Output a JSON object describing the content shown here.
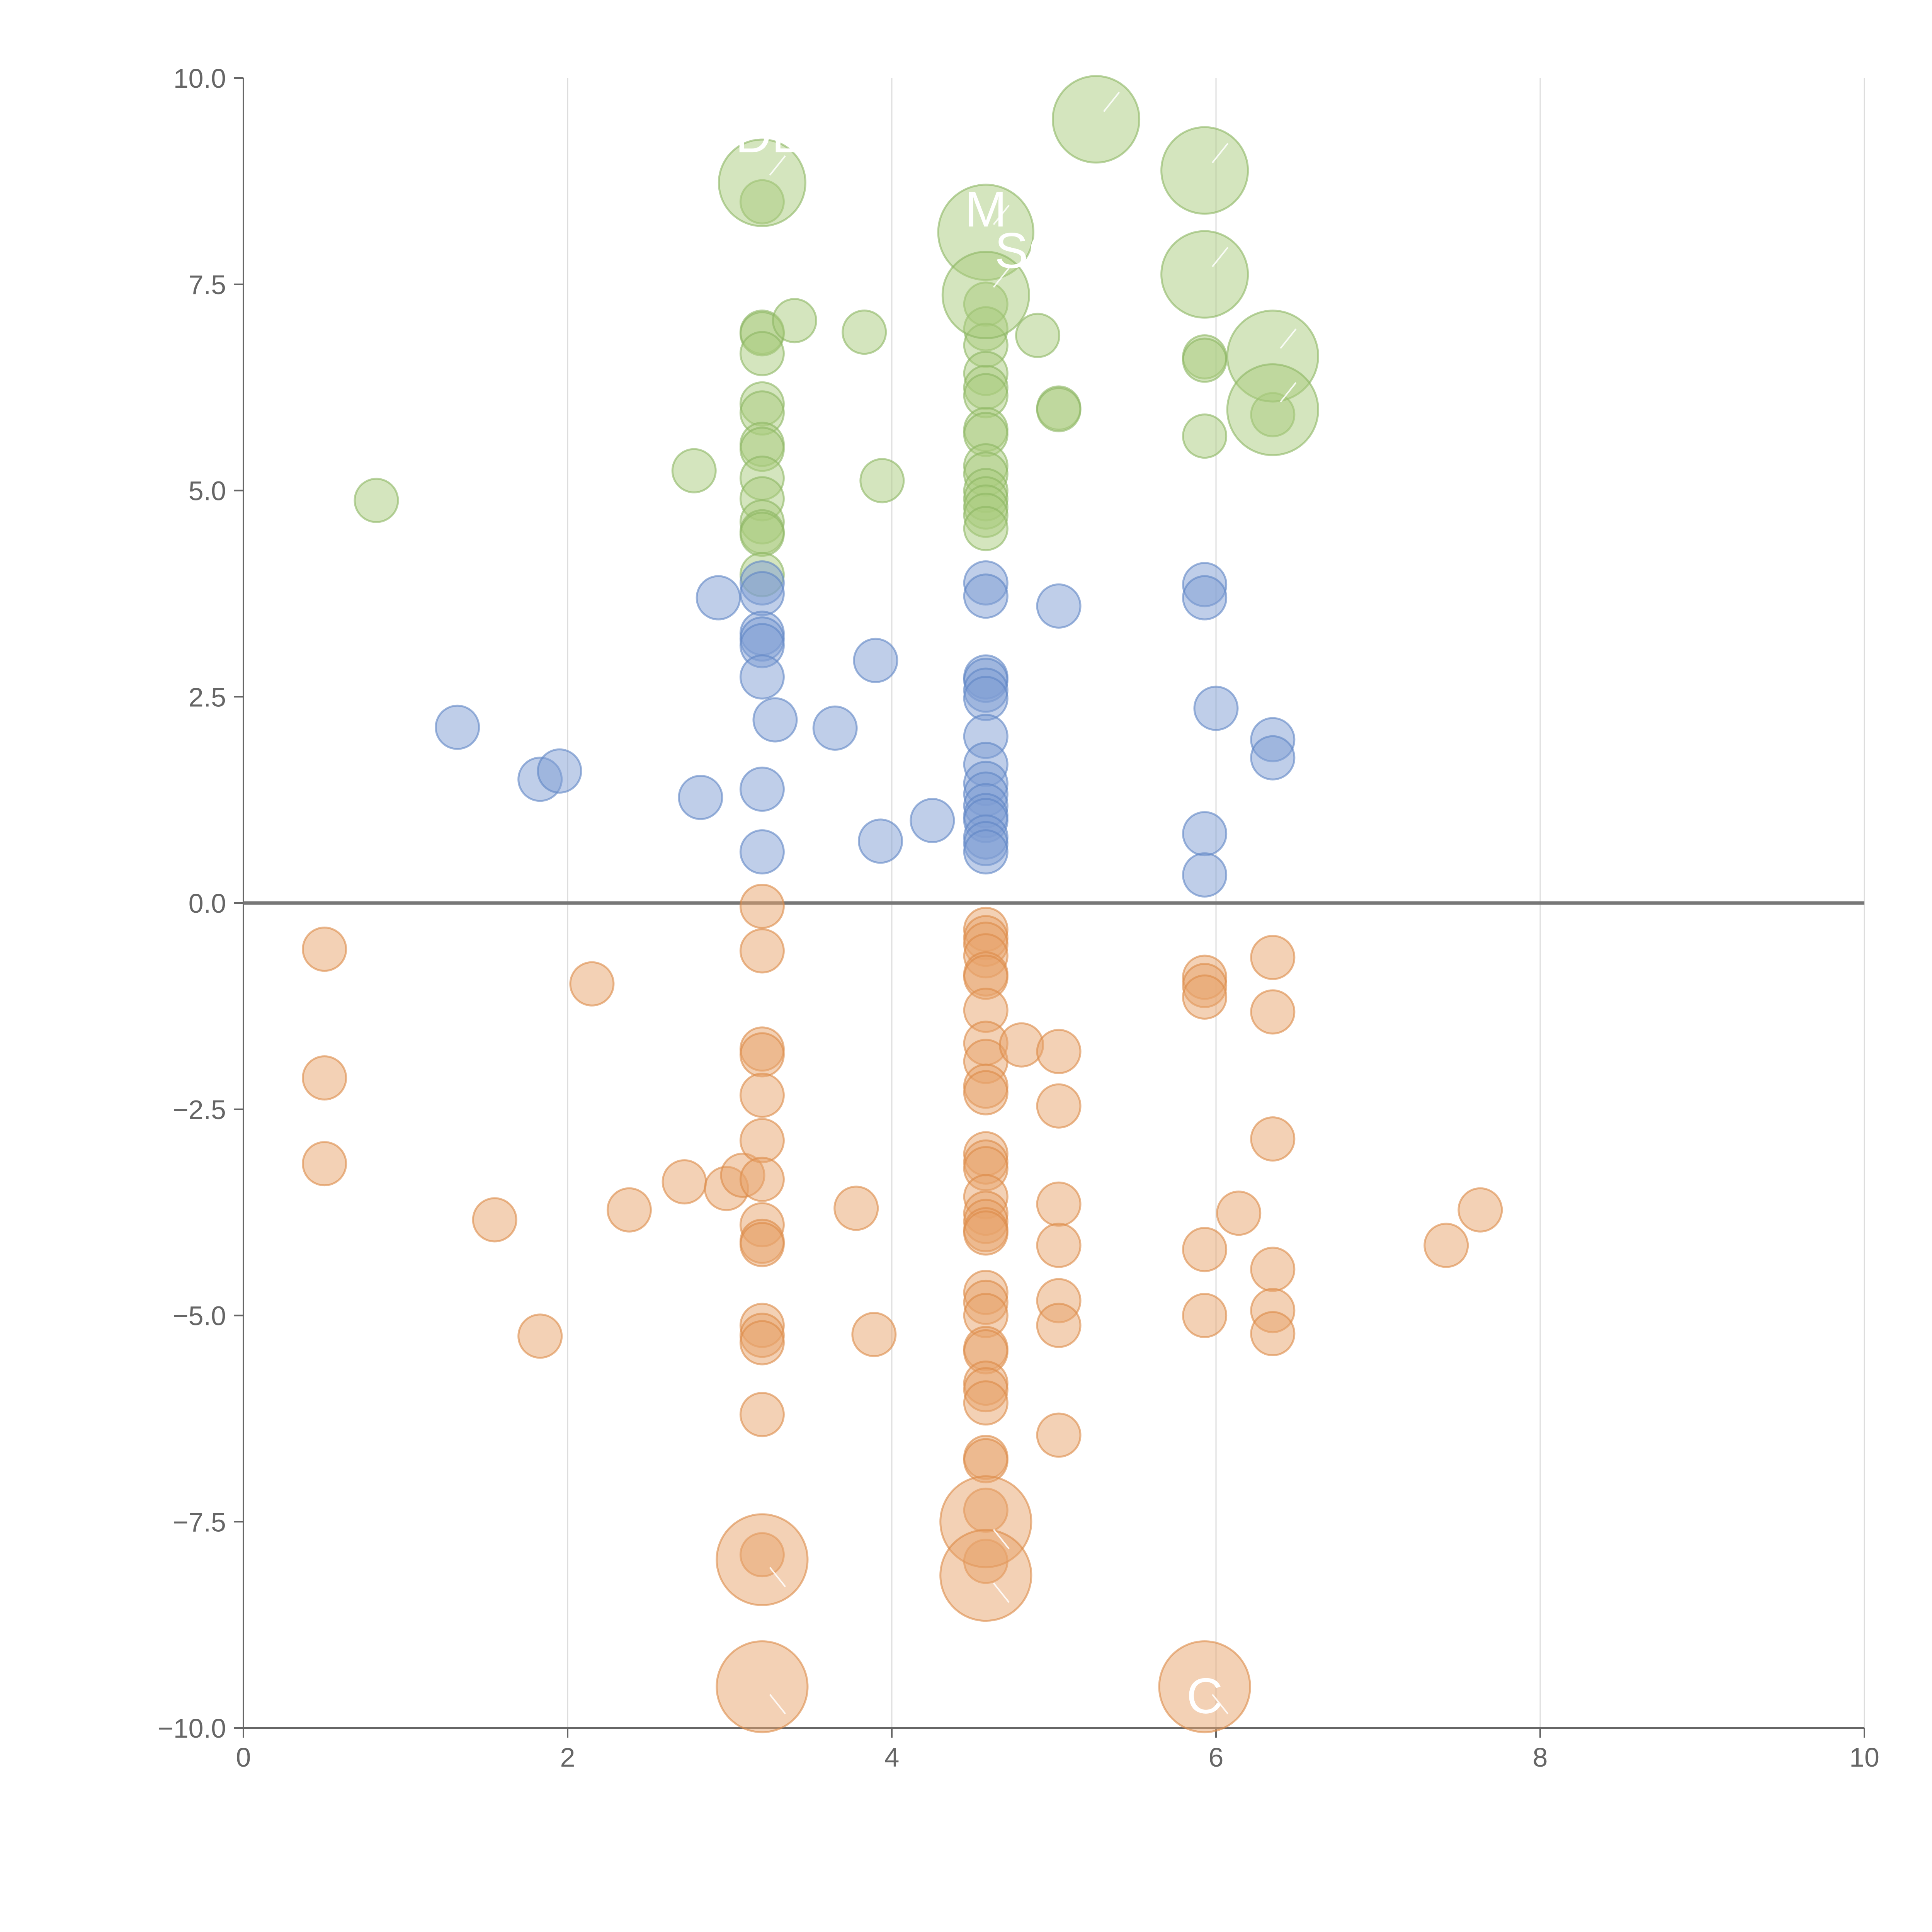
{
  "chart_data": {
    "type": "scatter",
    "title": "",
    "xlabel": "",
    "ylabel": "",
    "xlim": [
      0,
      10
    ],
    "ylim": [
      -10,
      10
    ],
    "grid": "vertical",
    "x_ticks": [
      0,
      2,
      4,
      6,
      8,
      10
    ],
    "y_ticks": [
      -10,
      -7.5,
      -5,
      -2.5,
      0,
      2.5,
      5,
      7.5,
      10
    ],
    "x_tick_labels": [
      "0",
      "2",
      "4",
      "6",
      "8",
      "10"
    ],
    "y_tick_labels": [
      "−10.0",
      "−7.5",
      "−5.0",
      "−2.5",
      "0.0",
      "2.5",
      "5.0",
      "7.5",
      "10.0"
    ],
    "colors": {
      "green_fill": "#a9cb7e",
      "green_stroke": "#8cb563",
      "blue_fill": "#7f9ed3",
      "blue_stroke": "#5f86c4",
      "orange_fill": "#e8a46c",
      "orange_stroke": "#dc8a48"
    },
    "series": [
      {
        "name": "green",
        "color": "green",
        "points": [
          [
            0.82,
            4.88,
            1
          ],
          [
            2.78,
            5.24,
            1
          ],
          [
            3.2,
            8.5,
            1
          ],
          [
            3.2,
            6.92,
            1
          ],
          [
            3.2,
            6.9,
            1
          ],
          [
            3.2,
            6.66,
            1
          ],
          [
            3.2,
            6.05,
            1
          ],
          [
            3.2,
            5.94,
            1
          ],
          [
            3.2,
            5.56,
            1
          ],
          [
            3.2,
            5.5,
            1
          ],
          [
            3.2,
            5.15,
            1
          ],
          [
            3.2,
            4.9,
            1
          ],
          [
            3.2,
            4.62,
            1
          ],
          [
            3.2,
            4.5,
            1
          ],
          [
            3.2,
            4.47,
            1
          ],
          [
            3.2,
            3.98,
            1
          ],
          [
            3.4,
            7.06,
            1
          ],
          [
            3.83,
            6.92,
            1
          ],
          [
            3.94,
            5.12,
            1
          ],
          [
            4.58,
            7.26,
            1
          ],
          [
            4.58,
            6.96,
            1
          ],
          [
            4.58,
            6.76,
            1
          ],
          [
            4.58,
            6.42,
            1
          ],
          [
            4.58,
            6.25,
            1
          ],
          [
            4.58,
            6.15,
            1
          ],
          [
            4.58,
            5.74,
            1
          ],
          [
            4.58,
            5.68,
            1
          ],
          [
            4.58,
            5.3,
            1
          ],
          [
            4.58,
            5.2,
            1
          ],
          [
            4.58,
            5.0,
            1
          ],
          [
            4.58,
            4.9,
            1
          ],
          [
            4.58,
            4.8,
            1
          ],
          [
            4.58,
            4.7,
            1
          ],
          [
            4.58,
            4.54,
            1
          ],
          [
            4.9,
            6.88,
            1
          ],
          [
            5.03,
            6.0,
            1
          ],
          [
            5.03,
            5.98,
            1
          ],
          [
            5.93,
            6.62,
            1
          ],
          [
            5.93,
            6.58,
            1
          ],
          [
            5.93,
            5.66,
            1
          ],
          [
            6.35,
            5.92,
            1
          ],
          [
            3.2,
            8.73,
            2
          ],
          [
            4.58,
            8.13,
            2.2
          ],
          [
            4.58,
            7.37,
            2
          ],
          [
            5.26,
            9.5,
            2
          ],
          [
            5.93,
            8.88,
            2
          ],
          [
            5.93,
            7.62,
            2
          ],
          [
            6.35,
            6.63,
            2.1
          ],
          [
            6.35,
            5.98,
            2.1
          ]
        ]
      },
      {
        "name": "blue",
        "color": "blue",
        "points": [
          [
            1.32,
            2.13,
            1
          ],
          [
            1.83,
            1.5,
            1
          ],
          [
            1.95,
            1.6,
            1
          ],
          [
            2.82,
            1.28,
            1
          ],
          [
            2.93,
            3.7,
            1
          ],
          [
            3.2,
            3.88,
            1
          ],
          [
            3.2,
            3.75,
            1
          ],
          [
            3.2,
            3.27,
            1
          ],
          [
            3.2,
            3.2,
            1
          ],
          [
            3.2,
            3.12,
            1
          ],
          [
            3.2,
            2.74,
            1
          ],
          [
            3.2,
            1.38,
            1
          ],
          [
            3.2,
            0.62,
            1
          ],
          [
            3.28,
            2.22,
            1
          ],
          [
            3.65,
            2.12,
            1
          ],
          [
            3.9,
            2.94,
            1
          ],
          [
            3.93,
            0.75,
            1
          ],
          [
            4.25,
            1.0,
            1
          ],
          [
            4.58,
            3.88,
            1
          ],
          [
            4.58,
            3.72,
            1
          ],
          [
            4.58,
            2.74,
            1
          ],
          [
            4.58,
            2.7,
            1
          ],
          [
            4.58,
            2.58,
            1
          ],
          [
            4.58,
            2.48,
            1
          ],
          [
            4.58,
            2.02,
            1
          ],
          [
            4.58,
            1.68,
            1
          ],
          [
            4.58,
            1.45,
            1
          ],
          [
            4.58,
            1.32,
            1
          ],
          [
            4.58,
            1.18,
            1
          ],
          [
            4.58,
            1.06,
            1
          ],
          [
            4.58,
            1.0,
            1
          ],
          [
            4.58,
            0.8,
            1
          ],
          [
            4.58,
            0.72,
            1
          ],
          [
            4.58,
            0.62,
            1
          ],
          [
            5.03,
            3.6,
            1
          ],
          [
            5.93,
            3.86,
            1
          ],
          [
            5.93,
            3.7,
            1
          ],
          [
            5.93,
            0.84,
            1
          ],
          [
            5.93,
            0.34,
            1
          ],
          [
            6.0,
            2.36,
            1
          ],
          [
            6.35,
            1.98,
            1
          ],
          [
            6.35,
            1.76,
            1
          ]
        ]
      },
      {
        "name": "orange",
        "color": "orange",
        "points": [
          [
            0.5,
            -0.56,
            1
          ],
          [
            0.5,
            -2.12,
            1
          ],
          [
            0.5,
            -3.16,
            1
          ],
          [
            1.55,
            -3.84,
            1
          ],
          [
            1.83,
            -5.25,
            1
          ],
          [
            2.15,
            -0.98,
            1
          ],
          [
            2.38,
            -3.72,
            1
          ],
          [
            2.72,
            -3.38,
            1
          ],
          [
            2.98,
            -3.46,
            1
          ],
          [
            3.08,
            -3.3,
            1
          ],
          [
            3.2,
            -0.04,
            1
          ],
          [
            3.2,
            -0.58,
            1
          ],
          [
            3.2,
            -1.77,
            1
          ],
          [
            3.2,
            -1.84,
            1
          ],
          [
            3.2,
            -2.33,
            1
          ],
          [
            3.2,
            -2.88,
            1
          ],
          [
            3.2,
            -3.35,
            1
          ],
          [
            3.2,
            -3.9,
            1
          ],
          [
            3.2,
            -4.1,
            1
          ],
          [
            3.2,
            -4.14,
            1
          ],
          [
            3.2,
            -5.12,
            1
          ],
          [
            3.2,
            -5.24,
            1
          ],
          [
            3.2,
            -5.33,
            1
          ],
          [
            3.2,
            -6.2,
            1
          ],
          [
            3.2,
            -7.9,
            1
          ],
          [
            3.78,
            -3.7,
            1
          ],
          [
            3.89,
            -5.23,
            1
          ],
          [
            4.58,
            -0.32,
            1
          ],
          [
            4.58,
            -0.42,
            1
          ],
          [
            4.58,
            -0.5,
            1
          ],
          [
            4.58,
            -0.64,
            1
          ],
          [
            4.58,
            -0.86,
            1
          ],
          [
            4.58,
            -0.9,
            1
          ],
          [
            4.58,
            -1.3,
            1
          ],
          [
            4.58,
            -1.7,
            1
          ],
          [
            4.58,
            -1.92,
            1
          ],
          [
            4.58,
            -2.22,
            1
          ],
          [
            4.58,
            -2.3,
            1
          ],
          [
            4.58,
            -3.04,
            1
          ],
          [
            4.58,
            -3.14,
            1
          ],
          [
            4.58,
            -3.22,
            1
          ],
          [
            4.58,
            -3.56,
            1
          ],
          [
            4.58,
            -3.76,
            1
          ],
          [
            4.58,
            -3.86,
            1
          ],
          [
            4.58,
            -3.96,
            1
          ],
          [
            4.58,
            -4.0,
            1
          ],
          [
            4.58,
            -4.72,
            1
          ],
          [
            4.58,
            -4.84,
            1
          ],
          [
            4.58,
            -5.0,
            1
          ],
          [
            4.58,
            -5.4,
            1
          ],
          [
            4.58,
            -5.44,
            1
          ],
          [
            4.58,
            -5.82,
            1
          ],
          [
            4.58,
            -5.9,
            1
          ],
          [
            4.58,
            -6.06,
            1
          ],
          [
            4.58,
            -6.72,
            1
          ],
          [
            4.58,
            -6.76,
            1
          ],
          [
            4.58,
            -7.36,
            1
          ],
          [
            4.58,
            -7.98,
            1
          ],
          [
            4.8,
            -1.72,
            1
          ],
          [
            5.03,
            -1.8,
            1
          ],
          [
            5.03,
            -2.46,
            1
          ],
          [
            5.03,
            -3.65,
            1
          ],
          [
            5.03,
            -4.15,
            1
          ],
          [
            5.03,
            -4.82,
            1
          ],
          [
            5.03,
            -5.12,
            1
          ],
          [
            5.03,
            -6.45,
            1
          ],
          [
            5.93,
            -0.9,
            1
          ],
          [
            5.93,
            -1.0,
            1
          ],
          [
            5.93,
            -1.14,
            1
          ],
          [
            5.93,
            -4.2,
            1
          ],
          [
            5.93,
            -5.0,
            1
          ],
          [
            6.14,
            -3.76,
            1
          ],
          [
            6.35,
            -0.66,
            1
          ],
          [
            6.35,
            -1.32,
            1
          ],
          [
            6.35,
            -2.86,
            1
          ],
          [
            6.35,
            -4.44,
            1
          ],
          [
            6.35,
            -4.94,
            1
          ],
          [
            6.35,
            -5.22,
            1
          ],
          [
            7.42,
            -4.15,
            1
          ],
          [
            7.63,
            -3.72,
            1
          ],
          [
            3.2,
            -7.96,
            2.1
          ],
          [
            3.2,
            -9.5,
            2.1
          ],
          [
            4.58,
            -7.5,
            2.1
          ],
          [
            4.58,
            -8.15,
            2.1
          ],
          [
            5.93,
            -9.5,
            2.1
          ]
        ]
      }
    ],
    "annotations": [
      {
        "text": "DE",
        "x": 3.25,
        "y": 9.1
      },
      {
        "text": "M",
        "x": 4.58,
        "y": 8.2
      },
      {
        "text": "SC",
        "x": 4.85,
        "y": 7.7
      },
      {
        "text": "C",
        "x": 5.93,
        "y": -9.82
      }
    ]
  }
}
